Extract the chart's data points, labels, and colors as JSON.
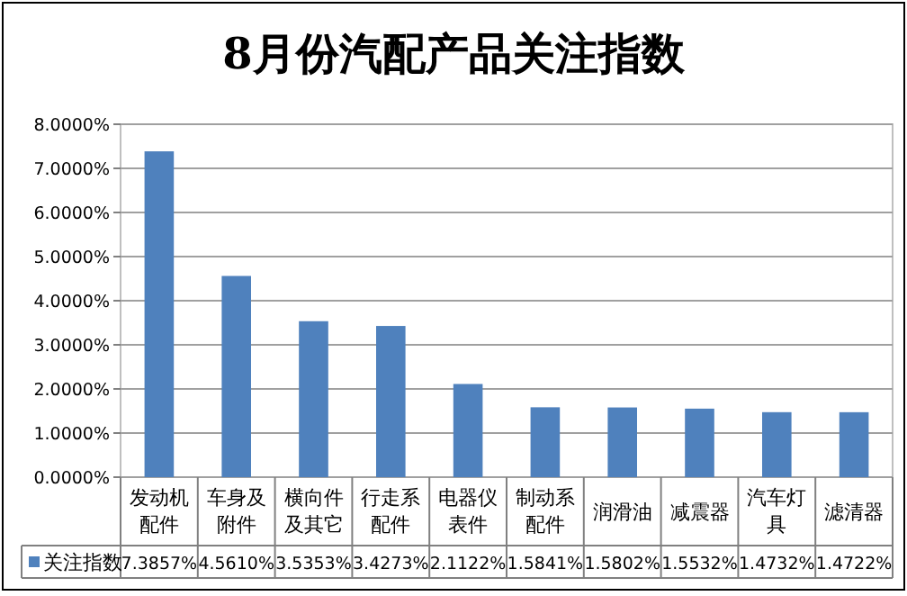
{
  "chart_data": {
    "type": "bar",
    "title": "8月份汽配产品关注指数",
    "categories": [
      "发动机配件",
      "车身及附件",
      "横向件及其它",
      "行走系配件",
      "电器仪表件",
      "制动系配件",
      "润滑油",
      "减震器",
      "汽车灯具",
      "滤清器"
    ],
    "series": [
      {
        "name": "关注指数",
        "color": "#4f81bd",
        "values": [
          7.3857,
          4.561,
          3.5353,
          3.4273,
          2.1122,
          1.5841,
          1.5802,
          1.5532,
          1.4732,
          1.4722
        ],
        "value_labels": [
          "7.3857%",
          "4.5610%",
          "3.5353%",
          "3.4273%",
          "2.1122%",
          "1.5841%",
          "1.5802%",
          "1.5532%",
          "1.4732%",
          "1.4722%"
        ]
      }
    ],
    "ylim": [
      0,
      8
    ],
    "yticks": [
      {
        "value": 0,
        "label": "0.0000%"
      },
      {
        "value": 1,
        "label": "1.0000%"
      },
      {
        "value": 2,
        "label": "2.0000%"
      },
      {
        "value": 3,
        "label": "3.0000%"
      },
      {
        "value": 4,
        "label": "4.0000%"
      },
      {
        "value": 5,
        "label": "5.0000%"
      },
      {
        "value": 6,
        "label": "6.0000%"
      },
      {
        "value": 7,
        "label": "7.0000%"
      },
      {
        "value": 8,
        "label": "8.0000%"
      }
    ],
    "grid": "y",
    "legend": "bottom"
  }
}
